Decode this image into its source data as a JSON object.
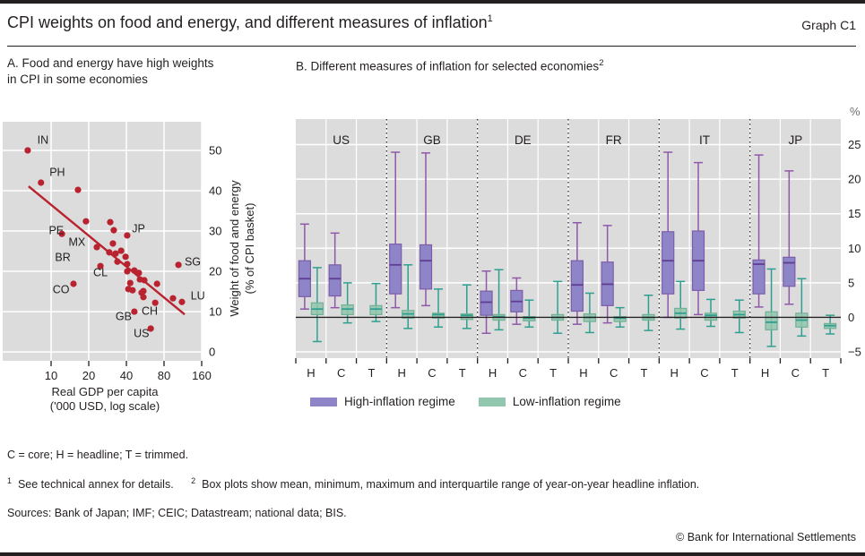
{
  "header": {
    "title": "CPI weights on food and energy, and different measures of inflation",
    "title_sup": "1",
    "graph_label": "Graph C1"
  },
  "colors": {
    "panel_bg": "#dcdcdc",
    "grid": "#ffffff",
    "text": "#231f20",
    "accent_red": "#b9222f",
    "high_fill": "#8d85c7",
    "high_stroke": "#7d5da9",
    "high_whisker": "#8f58a8",
    "high_mean": "#5f3d94",
    "low_fill": "#93c6ae",
    "low_stroke": "#71b194",
    "low_whisker": "#2f9f90",
    "low_mean": "#2f9f90"
  },
  "legend": {
    "high_label": "High-inflation regime",
    "low_label": "Low-inflation regime"
  },
  "notes": {
    "abbrev": "C = core; H = headline; T = trimmed.",
    "fn1_marker": "1",
    "fn1": "See technical annex for details.",
    "fn2_marker": "2",
    "fn2": "Box plots show mean, minimum, maximum and interquartile range of year-on-year headline inflation.",
    "sources": "Sources: Bank of Japan; IMF; CEIC; Datastream; national data; BIS.",
    "copyright": "© Bank for International Settlements"
  },
  "chart_data": [
    {
      "type": "scatter",
      "title": "A. Food and energy have high weights in CPI in some economies",
      "panel_sup": "",
      "xlabel_line1": "Real GDP per capita",
      "xlabel_line2": "('000 USD, log scale)",
      "ylabel_line1": "Weight of food and energy",
      "ylabel_line2": "(% of CPI basket)",
      "x_scale": "log2",
      "x_ticks": [
        10,
        20,
        40,
        80,
        160
      ],
      "y_ticks": [
        0,
        10,
        20,
        30,
        40,
        50
      ],
      "xlim": [
        4.1,
        160
      ],
      "ylim": [
        -2.2,
        57.1
      ],
      "grid": true,
      "point_color": "#b9222f",
      "trend": {
        "x1": 6.6,
        "y1": 41.1,
        "x2": 117,
        "y2": 9.3
      },
      "points": [
        {
          "x": 6.5,
          "y": 50.0
        },
        {
          "x": 8.3,
          "y": 42.0
        },
        {
          "x": 16.4,
          "y": 40.2
        },
        {
          "x": 12.2,
          "y": 29.3
        },
        {
          "x": 19.0,
          "y": 32.4
        },
        {
          "x": 29.7,
          "y": 32.2
        },
        {
          "x": 31.7,
          "y": 30.2
        },
        {
          "x": 23.2,
          "y": 26.0
        },
        {
          "x": 31.2,
          "y": 26.9
        },
        {
          "x": 40.6,
          "y": 28.9
        },
        {
          "x": 29.2,
          "y": 24.7
        },
        {
          "x": 32.8,
          "y": 24.4
        },
        {
          "x": 36.3,
          "y": 25.1
        },
        {
          "x": 39.4,
          "y": 23.6
        },
        {
          "x": 33.9,
          "y": 22.4
        },
        {
          "x": 40.6,
          "y": 21.8
        },
        {
          "x": 24.8,
          "y": 21.3
        },
        {
          "x": 15.1,
          "y": 16.9
        },
        {
          "x": 40.6,
          "y": 20.0
        },
        {
          "x": 46.3,
          "y": 20.2
        },
        {
          "x": 50.3,
          "y": 19.6
        },
        {
          "x": 51.3,
          "y": 18.0
        },
        {
          "x": 55.6,
          "y": 17.8
        },
        {
          "x": 42.9,
          "y": 17.1
        },
        {
          "x": 70.3,
          "y": 16.9
        },
        {
          "x": 41.5,
          "y": 15.6
        },
        {
          "x": 44.8,
          "y": 15.3
        },
        {
          "x": 54.7,
          "y": 15.1
        },
        {
          "x": 54.7,
          "y": 13.6
        },
        {
          "x": 52.9,
          "y": 14.7
        },
        {
          "x": 104.3,
          "y": 21.6
        },
        {
          "x": 68.0,
          "y": 12.2
        },
        {
          "x": 94.3,
          "y": 13.3
        },
        {
          "x": 111.2,
          "y": 12.4
        },
        {
          "x": 46.3,
          "y": 10.0
        },
        {
          "x": 62.6,
          "y": 5.8
        }
      ],
      "labels": [
        {
          "text": "IN",
          "x": 8.6,
          "y": 52.7
        },
        {
          "text": "PH",
          "x": 11.2,
          "y": 44.7
        },
        {
          "text": "PE",
          "x": 11.0,
          "y": 30.2
        },
        {
          "text": "MX",
          "x": 16.1,
          "y": 27.3
        },
        {
          "text": "BR",
          "x": 12.4,
          "y": 23.6
        },
        {
          "text": "CL",
          "x": 24.8,
          "y": 19.8
        },
        {
          "text": "CO",
          "x": 12.0,
          "y": 15.6
        },
        {
          "text": "JP",
          "x": 50.0,
          "y": 30.7
        },
        {
          "text": "SG",
          "x": 135.6,
          "y": 22.4
        },
        {
          "text": "GB",
          "x": 38.0,
          "y": 8.9
        },
        {
          "text": "CH",
          "x": 61.4,
          "y": 10.2
        },
        {
          "text": "US",
          "x": 52.8,
          "y": 4.7
        },
        {
          "text": "LU",
          "x": 149.0,
          "y": 14.0
        }
      ]
    },
    {
      "type": "boxplot",
      "title": "B. Different measures of inflation for selected economies",
      "panel_sup": "2",
      "unit": "%",
      "y_ticks": [
        -5,
        0,
        5,
        10,
        15,
        20,
        25
      ],
      "ylim": [
        -5.9,
        28.7
      ],
      "grid": true,
      "legend_position": "bottom",
      "economies": [
        "US",
        "GB",
        "DE",
        "FR",
        "IT",
        "JP"
      ],
      "measures": [
        "H",
        "C",
        "T"
      ],
      "series": [
        {
          "name": "High-inflation regime",
          "fill": "#8d85c7",
          "stroke": "#7d5da9",
          "whisker": "#8f58a8",
          "mean_line": "#5f3d94",
          "fill_opacity": 1
        },
        {
          "name": "Low-inflation regime",
          "fill": "#93c6ae",
          "stroke": "#71b194",
          "whisker": "#2f9f90",
          "mean_line": "#2f9f90",
          "fill_opacity": 0.85
        }
      ],
      "groups": [
        {
          "economy": "US",
          "measure": "H",
          "high": {
            "min": 1.2,
            "q1": 3.0,
            "mean": 5.6,
            "q3": 8.2,
            "max": 13.5
          },
          "low": {
            "min": -3.5,
            "q1": 0.4,
            "mean": 1.2,
            "q3": 2.1,
            "max": 7.2
          }
        },
        {
          "economy": "US",
          "measure": "C",
          "high": {
            "min": 1.4,
            "q1": 3.1,
            "mean": 5.6,
            "q3": 7.6,
            "max": 12.2
          },
          "low": {
            "min": -0.8,
            "q1": 0.4,
            "mean": 1.2,
            "q3": 1.8,
            "max": 5.0
          }
        },
        {
          "economy": "US",
          "measure": "T",
          "high": null,
          "low": {
            "min": -0.6,
            "q1": 0.4,
            "mean": 1.2,
            "q3": 1.7,
            "max": 4.9
          }
        },
        {
          "economy": "GB",
          "measure": "H",
          "high": {
            "min": 1.4,
            "q1": 3.4,
            "mean": 7.6,
            "q3": 10.6,
            "max": 23.9
          },
          "low": {
            "min": -1.6,
            "q1": -0.1,
            "mean": 0.5,
            "q3": 1.0,
            "max": 7.6
          }
        },
        {
          "economy": "GB",
          "measure": "C",
          "high": {
            "min": 1.7,
            "q1": 4.1,
            "mean": 8.2,
            "q3": 10.5,
            "max": 23.8
          },
          "low": {
            "min": -1.4,
            "q1": -0.1,
            "mean": 0.4,
            "q3": 0.6,
            "max": 4.1
          }
        },
        {
          "economy": "GB",
          "measure": "T",
          "high": null,
          "low": {
            "min": -1.6,
            "q1": -0.3,
            "mean": 0.3,
            "q3": 0.5,
            "max": 4.7
          }
        },
        {
          "economy": "DE",
          "measure": "H",
          "high": {
            "min": -2.3,
            "q1": 0.3,
            "mean": 2.2,
            "q3": 3.8,
            "max": 6.7
          },
          "low": {
            "min": -1.8,
            "q1": -0.4,
            "mean": 0.1,
            "q3": 0.4,
            "max": 6.9
          }
        },
        {
          "economy": "DE",
          "measure": "C",
          "high": {
            "min": -1.0,
            "q1": 0.8,
            "mean": 2.3,
            "q3": 3.9,
            "max": 5.7
          },
          "low": {
            "min": -1.4,
            "q1": -0.5,
            "mean": -0.1,
            "q3": 0.1,
            "max": 2.5
          }
        },
        {
          "economy": "DE",
          "measure": "T",
          "high": null,
          "low": {
            "min": -2.3,
            "q1": -0.4,
            "mean": 0.0,
            "q3": 0.4,
            "max": 5.2
          }
        },
        {
          "economy": "FR",
          "measure": "H",
          "high": {
            "min": -1.0,
            "q1": 0.9,
            "mean": 4.7,
            "q3": 8.2,
            "max": 13.7
          },
          "low": {
            "min": -2.2,
            "q1": -0.6,
            "mean": 0.0,
            "q3": 0.5,
            "max": 3.5
          }
        },
        {
          "economy": "FR",
          "measure": "C",
          "high": {
            "min": -0.8,
            "q1": 1.7,
            "mean": 4.8,
            "q3": 8.0,
            "max": 13.3
          },
          "low": {
            "min": -1.4,
            "q1": -0.6,
            "mean": -0.1,
            "q3": 0.1,
            "max": 1.4
          }
        },
        {
          "economy": "FR",
          "measure": "T",
          "high": null,
          "low": {
            "min": -1.9,
            "q1": -0.4,
            "mean": 0.0,
            "q3": 0.4,
            "max": 3.2
          }
        },
        {
          "economy": "IT",
          "measure": "H",
          "high": {
            "min": 0.0,
            "q1": 3.4,
            "mean": 8.2,
            "q3": 12.4,
            "max": 23.9
          },
          "low": {
            "min": -1.7,
            "q1": -0.1,
            "mean": 0.6,
            "q3": 1.3,
            "max": 5.2
          }
        },
        {
          "economy": "IT",
          "measure": "C",
          "high": {
            "min": 0.4,
            "q1": 3.9,
            "mean": 8.2,
            "q3": 12.5,
            "max": 22.4
          },
          "low": {
            "min": -1.3,
            "q1": -0.4,
            "mean": 0.3,
            "q3": 0.6,
            "max": 2.6
          }
        },
        {
          "economy": "IT",
          "measure": "T",
          "high": null,
          "low": {
            "min": -2.2,
            "q1": -0.1,
            "mean": 0.4,
            "q3": 0.9,
            "max": 2.5
          }
        },
        {
          "economy": "JP",
          "measure": "H",
          "high": {
            "min": 1.5,
            "q1": 3.4,
            "mean": 7.7,
            "q3": 8.3,
            "max": 23.5
          },
          "low": {
            "min": -4.2,
            "q1": -1.8,
            "mean": -0.7,
            "q3": 0.8,
            "max": 7.0
          }
        },
        {
          "economy": "JP",
          "measure": "C",
          "high": {
            "min": 1.9,
            "q1": 4.5,
            "mean": 7.9,
            "q3": 8.7,
            "max": 21.2
          },
          "low": {
            "min": -2.7,
            "q1": -1.4,
            "mean": -0.4,
            "q3": 0.6,
            "max": 5.6
          }
        },
        {
          "economy": "JP",
          "measure": "T",
          "high": null,
          "low": {
            "min": -2.4,
            "q1": -1.6,
            "mean": -1.2,
            "q3": -0.9,
            "max": 0.3
          }
        }
      ]
    }
  ]
}
